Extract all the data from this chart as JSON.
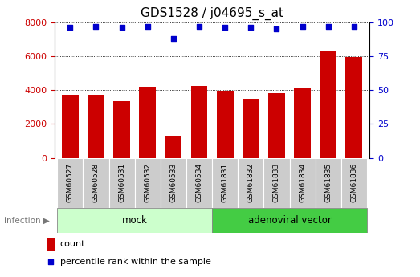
{
  "title": "GDS1528 / j04695_s_at",
  "samples": [
    "GSM60527",
    "GSM60528",
    "GSM60531",
    "GSM60532",
    "GSM60533",
    "GSM60534",
    "GSM61831",
    "GSM61832",
    "GSM61833",
    "GSM61834",
    "GSM61835",
    "GSM61836"
  ],
  "counts": [
    3700,
    3700,
    3350,
    4200,
    1250,
    4250,
    3950,
    3500,
    3800,
    4100,
    6300,
    5950
  ],
  "percentile_ranks": [
    96,
    97,
    96,
    97,
    88,
    97,
    96,
    96,
    95,
    97,
    97,
    97
  ],
  "bar_color": "#cc0000",
  "dot_color": "#0000cc",
  "ylim_left": [
    0,
    8000
  ],
  "ylim_right": [
    0,
    100
  ],
  "yticks_left": [
    0,
    2000,
    4000,
    6000,
    8000
  ],
  "yticks_right": [
    0,
    25,
    50,
    75,
    100
  ],
  "group1_label": "mock",
  "group2_label": "adenoviral vector",
  "group1_count": 6,
  "group2_count": 6,
  "factor_label": "infection",
  "group1_color": "#ccffcc",
  "group2_color": "#44cc44",
  "tick_bg_color": "#cccccc",
  "legend_count_label": "count",
  "legend_pct_label": "percentile rank within the sample",
  "title_fontsize": 11,
  "tick_fontsize": 8,
  "label_fontsize": 8.5,
  "legend_fontsize": 8
}
